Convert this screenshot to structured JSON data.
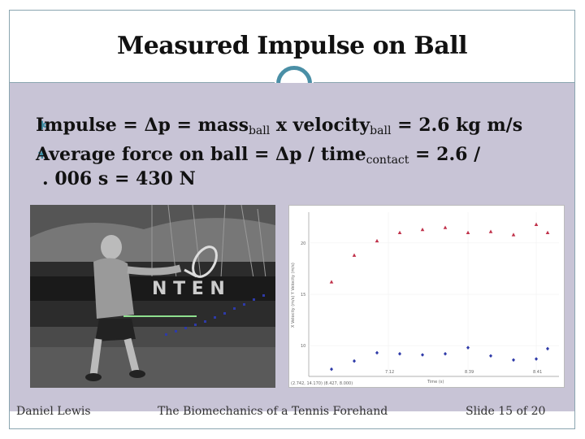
{
  "title": "Measured Impulse on Ball",
  "bullets": {
    "b1_pre": "Impulse = Δp = mass",
    "b1_sub1": "ball",
    "b1_mid": " x velocity",
    "b1_sub2": "ball",
    "b1_post": " = 2.6 kg m/s",
    "b2_pre": "Average force on ball = Δp / time",
    "b2_sub": "contact",
    "b2_post": " = 2.6 /",
    "b2_cont": ". 006 s = 430 N"
  },
  "photo": {
    "scene_text": "N  T E N"
  },
  "footer": {
    "author": "Daniel Lewis",
    "deck": "The Biomechanics of a Tennis Forehand",
    "slide": "Slide 15 of 20"
  },
  "chart_data": {
    "type": "scatter",
    "xlim": [
      0,
      11
    ],
    "ylim": [
      7,
      23
    ],
    "ytick_labels": [
      "20",
      "15",
      "10"
    ],
    "ylabel": "X Velocity (m/s) Y Velocity (m/s)",
    "xlabel": "Time (s)",
    "xtick_labels": [
      "7.12",
      "8.39",
      "8.41"
    ],
    "footer_text": "(2.742, 14.170) (8.427, 8.000)",
    "series": [
      {
        "color": "#c0314a",
        "marker": "triangle",
        "x": [
          1.0,
          2.0,
          3.0,
          4.0,
          5.0,
          6.0,
          7.0,
          8.0,
          9.0,
          10.0,
          10.5
        ],
        "y": [
          16.2,
          18.8,
          20.2,
          21.0,
          21.3,
          21.5,
          21.0,
          21.1,
          20.8,
          21.8,
          21.0
        ]
      },
      {
        "color": "#2e3aa8",
        "marker": "diamond",
        "x": [
          1.0,
          2.0,
          3.0,
          4.0,
          5.0,
          6.0,
          7.0,
          8.0,
          9.0,
          10.0,
          10.5
        ],
        "y": [
          7.7,
          8.5,
          9.3,
          9.2,
          9.1,
          9.2,
          9.8,
          9.0,
          8.6,
          8.7,
          9.7
        ]
      }
    ]
  },
  "colors": {
    "accent": "#4a8fa6",
    "body_bg": "#c8c4d6",
    "border": "#8aa5b0"
  }
}
